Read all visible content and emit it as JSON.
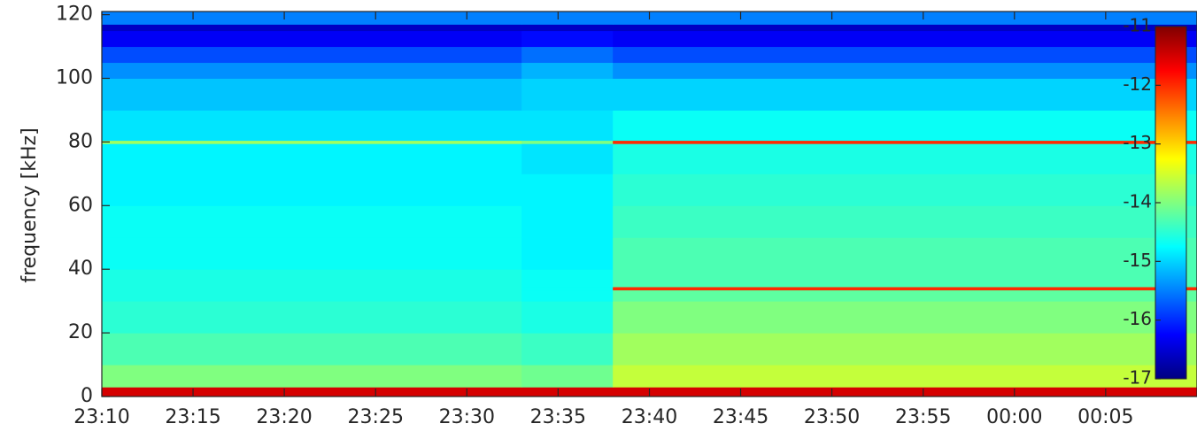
{
  "chart_data": {
    "type": "heatmap",
    "ylabel": "frequency [kHz]",
    "colormap": "jet",
    "x_edges": [
      23.1667,
      23.55,
      23.6333,
      24.1667
    ],
    "y_edges": [
      0,
      3,
      10,
      20,
      30,
      33.5,
      34.5,
      40,
      50,
      60,
      70,
      79.5,
      80.5,
      90,
      100,
      105,
      110,
      115,
      117,
      121
    ],
    "z": [
      [
        -11.5,
        -11.5,
        -11.5
      ],
      [
        -14.0,
        -14.1,
        -13.6
      ],
      [
        -14.3,
        -14.4,
        -13.8
      ],
      [
        -14.5,
        -14.6,
        -14.0
      ],
      [
        -14.6,
        -14.7,
        -14.2
      ],
      [
        -14.6,
        -14.7,
        -12.0
      ],
      [
        -14.6,
        -14.7,
        -14.3
      ],
      [
        -14.7,
        -14.8,
        -14.3
      ],
      [
        -14.7,
        -14.8,
        -14.4
      ],
      [
        -14.8,
        -14.8,
        -14.5
      ],
      [
        -14.8,
        -14.9,
        -14.6
      ],
      [
        -13.8,
        -14.0,
        -12.0
      ],
      [
        -14.9,
        -14.9,
        -14.7
      ],
      [
        -15.1,
        -15.0,
        -15.0
      ],
      [
        -15.4,
        -15.2,
        -15.4
      ],
      [
        -15.8,
        -15.6,
        -15.8
      ],
      [
        -16.3,
        -16.2,
        -16.3
      ],
      [
        -16.6,
        -16.6,
        -16.6
      ],
      [
        -15.5,
        -15.5,
        -15.5
      ]
    ],
    "xlim": [
      23.1667,
      24.1667
    ],
    "xticks": [
      {
        "value": 23.1667,
        "label": "23:10"
      },
      {
        "value": 23.25,
        "label": "23:15"
      },
      {
        "value": 23.3333,
        "label": "23:20"
      },
      {
        "value": 23.4167,
        "label": "23:25"
      },
      {
        "value": 23.5,
        "label": "23:30"
      },
      {
        "value": 23.5833,
        "label": "23:35"
      },
      {
        "value": 23.6667,
        "label": "23:40"
      },
      {
        "value": 23.75,
        "label": "23:45"
      },
      {
        "value": 23.8333,
        "label": "23:50"
      },
      {
        "value": 23.9167,
        "label": "23:55"
      },
      {
        "value": 24.0,
        "label": "00:00"
      },
      {
        "value": 24.0833,
        "label": "00:05"
      }
    ],
    "ylim": [
      0,
      121
    ],
    "yticks": [
      0,
      20,
      40,
      60,
      80,
      100,
      120
    ],
    "clim": [
      -17,
      -11
    ],
    "cticks": [
      -17,
      -16,
      -15,
      -14,
      -13,
      -12,
      -11
    ]
  }
}
